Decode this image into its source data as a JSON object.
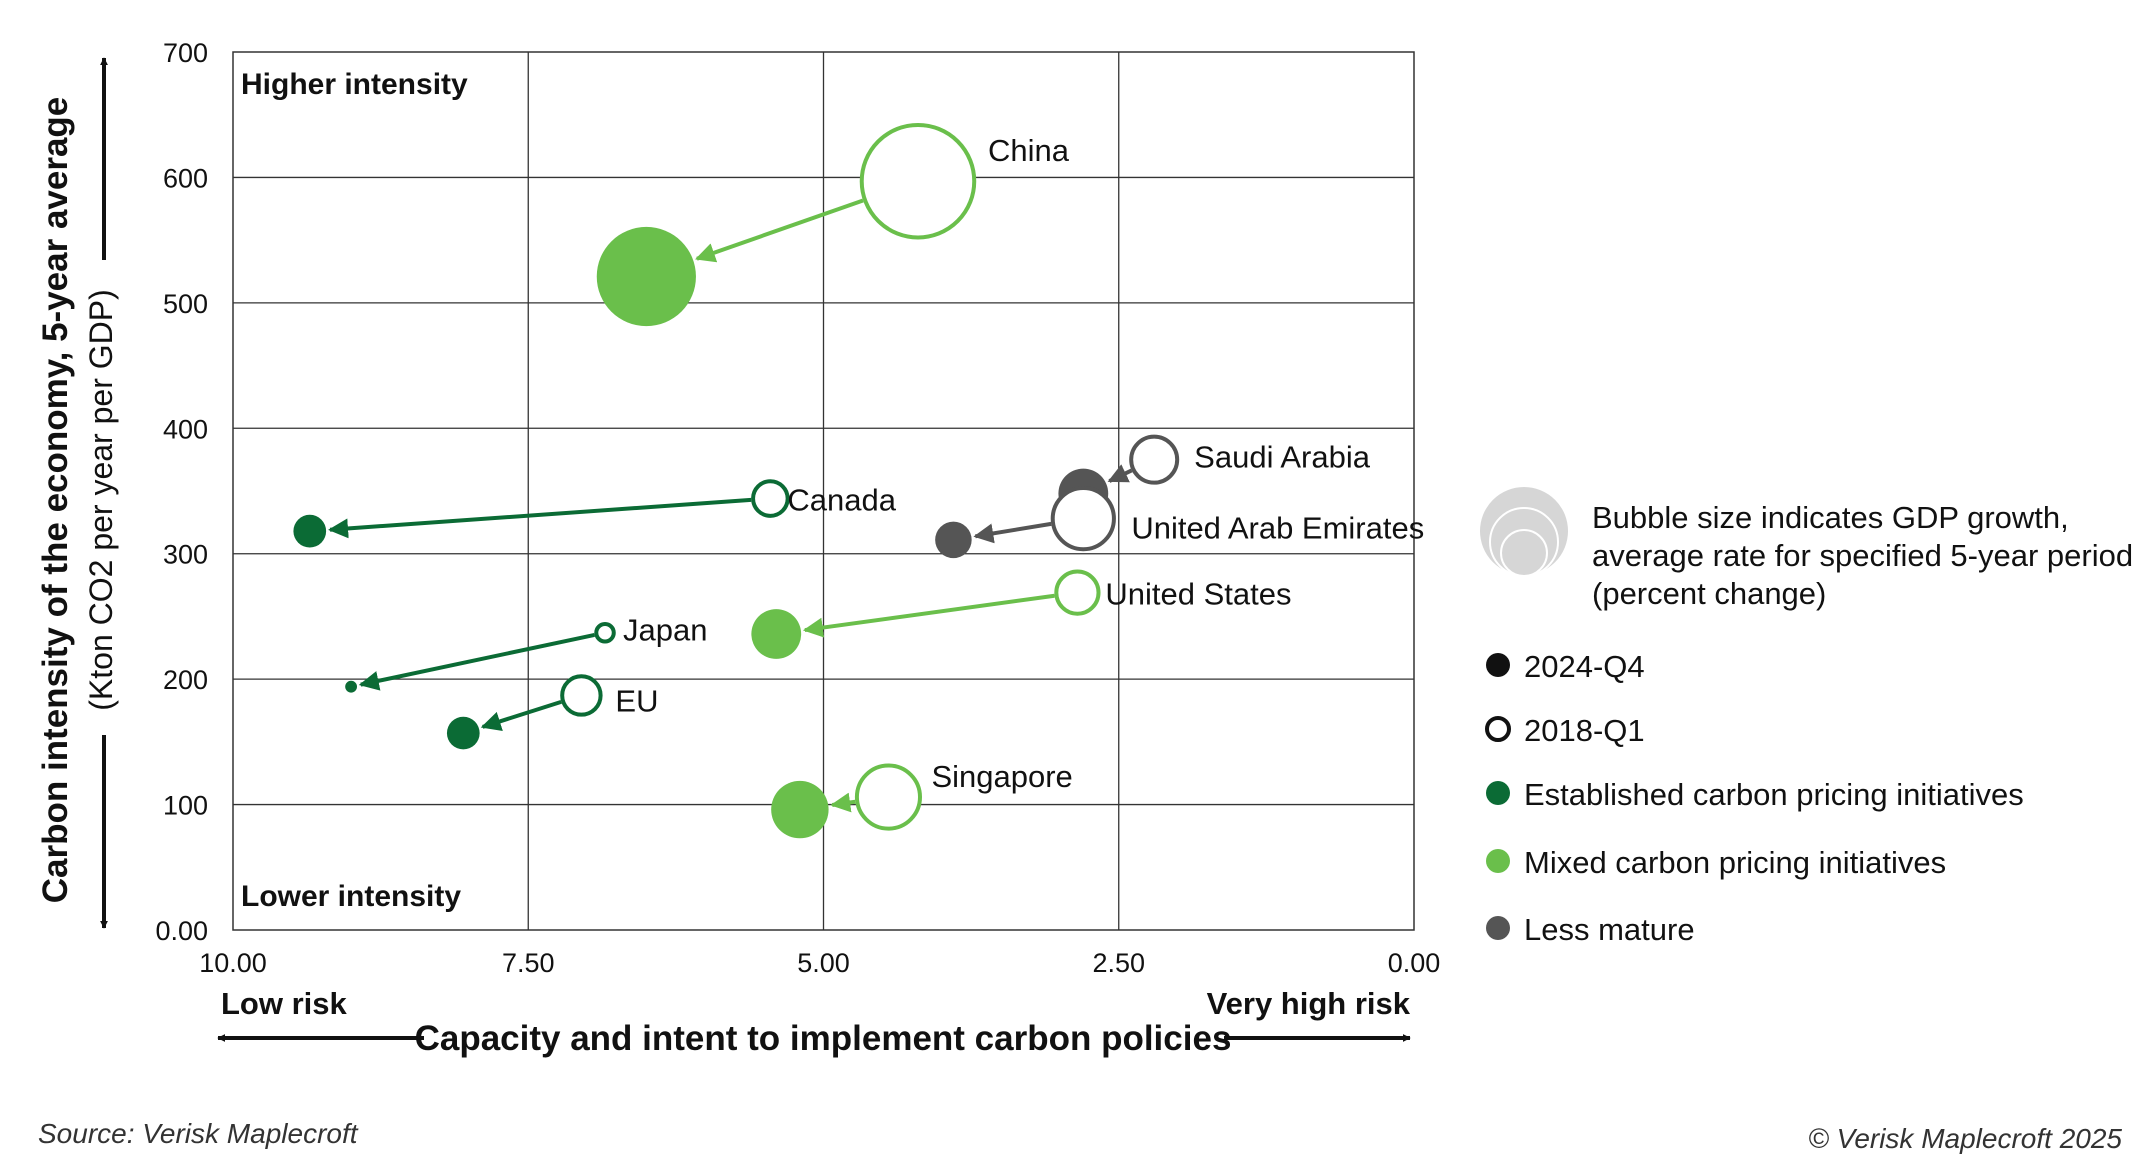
{
  "colors": {
    "established": "#0b6b35",
    "mixed": "#6abf4b",
    "less_mature": "#555555",
    "grid": "#333333"
  },
  "chart_data": {
    "type": "scatter",
    "subtype": "bubble-connected",
    "x_reversed": true,
    "xlim": [
      10,
      0
    ],
    "ylim": [
      0,
      700
    ],
    "x_ticks": [
      "10.00",
      "7.50",
      "5.00",
      "2.50",
      "0.00"
    ],
    "y_ticks": [
      "0.00",
      "100",
      "200",
      "300",
      "400",
      "500",
      "600",
      "700"
    ],
    "xlabel": "Capacity and intent to implement carbon policies",
    "ylabel": "Carbon intensity of the economy, 5-year average",
    "ylabel_sub": "(Kton CO2 per year per GDP)",
    "x_left_label": "Low risk",
    "x_right_label": "Very high risk",
    "top_label": "Higher intensity",
    "bottom_label": "Lower intensity",
    "grid": true,
    "legend_position": "right",
    "series": [
      {
        "name": "China",
        "group": "mixed",
        "from": {
          "x": 4.2,
          "y": 597,
          "size": 55
        },
        "to": {
          "x": 6.5,
          "y": 521,
          "size": 48
        }
      },
      {
        "name": "Saudi Arabia",
        "group": "less_mature",
        "from": {
          "x": 2.2,
          "y": 375,
          "size": 20
        },
        "to": {
          "x": 2.8,
          "y": 348,
          "size": 22
        }
      },
      {
        "name": "United Arab Emirates",
        "group": "less_mature",
        "from": {
          "x": 2.8,
          "y": 328,
          "size": 28
        },
        "to": {
          "x": 3.9,
          "y": 311,
          "size": 15
        }
      },
      {
        "name": "Canada",
        "group": "established",
        "from": {
          "x": 5.45,
          "y": 344,
          "size": 14
        },
        "to": {
          "x": 9.35,
          "y": 318,
          "size": 13
        }
      },
      {
        "name": "United States",
        "group": "mixed",
        "from": {
          "x": 2.85,
          "y": 269,
          "size": 18
        },
        "to": {
          "x": 5.4,
          "y": 236,
          "size": 22
        }
      },
      {
        "name": "Japan",
        "group": "established",
        "from": {
          "x": 6.85,
          "y": 237,
          "size": 5
        },
        "to": {
          "x": 9.0,
          "y": 194,
          "size": 2
        }
      },
      {
        "name": "EU",
        "group": "established",
        "from": {
          "x": 7.05,
          "y": 187,
          "size": 16
        },
        "to": {
          "x": 8.05,
          "y": 157,
          "size": 13
        }
      },
      {
        "name": "Singapore",
        "group": "mixed",
        "from": {
          "x": 4.45,
          "y": 106,
          "size": 29
        },
        "to": {
          "x": 5.2,
          "y": 96,
          "size": 26
        }
      }
    ]
  },
  "legend": {
    "bubble_note_line1": "Bubble size indicates GDP growth,",
    "bubble_note_line2": "average rate for specified 5-year period",
    "bubble_note_line3": "(percent change)",
    "items": [
      {
        "label": "2024-Q4",
        "style": "filled-black"
      },
      {
        "label": "2018-Q1",
        "style": "hollow-black"
      },
      {
        "label": "Established carbon pricing initiatives",
        "style": "established"
      },
      {
        "label": "Mixed carbon pricing initiatives",
        "style": "mixed"
      },
      {
        "label": "Less mature",
        "style": "less_mature"
      }
    ]
  },
  "footer": {
    "source": "Source: Verisk Maplecroft",
    "copyright": "© Verisk Maplecroft 2025"
  }
}
